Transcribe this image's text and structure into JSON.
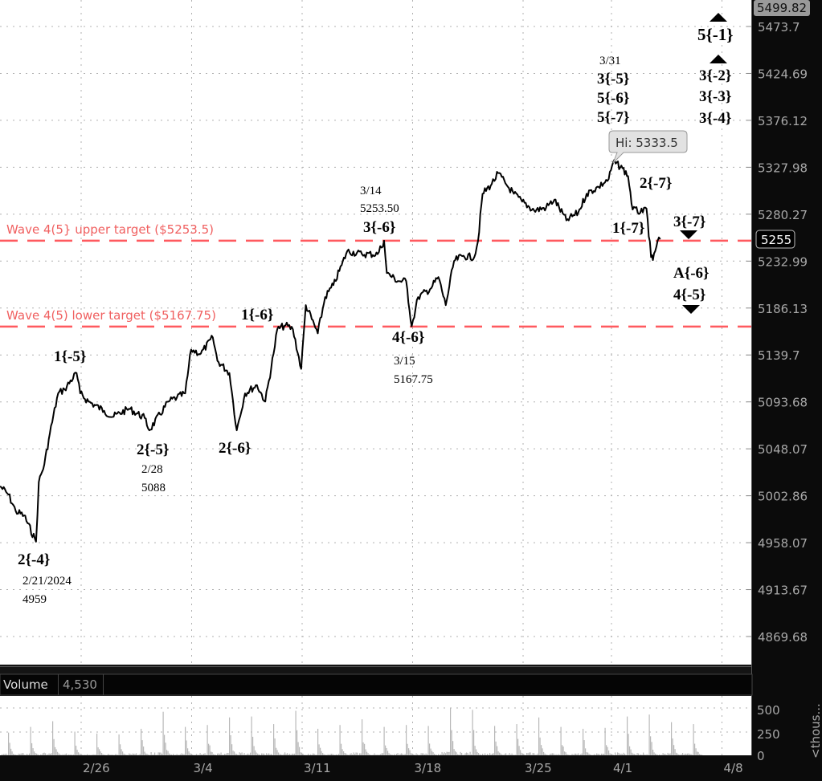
{
  "colors": {
    "price_line": "#000000",
    "target_line": "#ff5a5f",
    "target_text": "#f06060",
    "volume_bar": "#b8b8b8",
    "axis_bg": "#0b0b0b",
    "axis_text": "#a8a8a8"
  },
  "price_axis": {
    "top_box": "5499.82",
    "ticks": [
      "5473.7",
      "5424.69",
      "5376.12",
      "5327.98",
      "5280.27",
      "5232.99",
      "5186.13",
      "5139.7",
      "5093.68",
      "5048.07",
      "5002.86",
      "4958.07",
      "4913.67",
      "4869.68"
    ],
    "last_price": "5255"
  },
  "date_axis": {
    "ticks": [
      "2/26",
      "3/4",
      "3/11",
      "3/18",
      "3/25",
      "4/1",
      "4/8"
    ]
  },
  "volume": {
    "label": "Volume",
    "value": "4,530",
    "ticks": [
      "500",
      "250",
      "0"
    ],
    "unit": "<thous..."
  },
  "targets": [
    {
      "label": "Wave 4(5} upper target ($5253.5)",
      "price": 5253.5
    },
    {
      "label": "Wave 4(5) lower target ($5167.75)",
      "price": 5167.75
    }
  ],
  "callout": {
    "text": "Hi: 5333.5"
  },
  "annotations": {
    "a1": "2{-4}",
    "a1d": "2/21/2024",
    "a1p": "4959",
    "a2": "1{-5}",
    "a3": "2{-5}",
    "a3d": "2/28",
    "a3p": "5088",
    "a4": "2{-6}",
    "a5": "1{-6}",
    "a6d": "3/14",
    "a6p": "5253.50",
    "a6": "3{-6}",
    "a7": "4{-6}",
    "a7d": "3/15",
    "a7p": "5167.75",
    "a8d": "3/31",
    "a8a": "3{-5}",
    "a8b": "5{-6}",
    "a8c": "5{-7}",
    "a9": "2{-7}",
    "a10": "1{-7}",
    "a11": "3{-7}",
    "a12": "A{-6}",
    "a13": "4{-5}",
    "a14": "5{-1}",
    "a15": "3{-2}",
    "a16": "3{-3}",
    "a17": "3{-4}"
  },
  "chart_data": {
    "type": "line",
    "y_scale": "log",
    "ylim": [
      4845,
      5505
    ],
    "grid": true,
    "series": [
      {
        "points": [
          [
            "2/20 08:00",
            5012
          ],
          [
            "2/20 17:00",
            5004
          ],
          [
            "2/21 01:00",
            4988
          ],
          [
            "2/21 10:00",
            4984
          ],
          [
            "2/21 23:00",
            4959
          ],
          [
            "2/22 02:00",
            5016
          ],
          [
            "2/22 08:00",
            5033
          ],
          [
            "2/22 14:00",
            5063
          ],
          [
            "2/22 23:00",
            5102
          ],
          [
            "2/23 06:00",
            5106
          ],
          [
            "2/23 19:00",
            5122
          ],
          [
            "2/23 23:00",
            5102
          ],
          [
            "2/26 08:00",
            5094
          ],
          [
            "2/27 01:00",
            5085
          ],
          [
            "2/27 10:00",
            5079
          ],
          [
            "2/28 04:00",
            5087
          ],
          [
            "2/28 21:00",
            5078
          ],
          [
            "2/29 02:00",
            5066
          ],
          [
            "2/29 23:00",
            5094
          ],
          [
            "3/1 08:00",
            5098
          ],
          [
            "3/1 17:00",
            5102
          ],
          [
            "3/1 23:30",
            5145
          ],
          [
            "3/4 10:00",
            5141
          ],
          [
            "3/4 23:00",
            5157
          ],
          [
            "3/5 04:00",
            5134
          ],
          [
            "3/5 17:00",
            5122
          ],
          [
            "3/5 21:00",
            5094
          ],
          [
            "3/6 01:00",
            5066
          ],
          [
            "3/6 10:00",
            5102
          ],
          [
            "3/6 23:00",
            5110
          ],
          [
            "3/7 08:00",
            5094
          ],
          [
            "3/7 17:00",
            5141
          ],
          [
            "3/7 21:00",
            5165
          ],
          [
            "3/8 06:00",
            5169
          ],
          [
            "3/8 14:00",
            5165
          ],
          [
            "3/8 23:00",
            5126
          ],
          [
            "3/11 04:00",
            5189
          ],
          [
            "3/11 17:00",
            5161
          ],
          [
            "3/12 01:00",
            5197
          ],
          [
            "3/12 10:00",
            5209
          ],
          [
            "3/12 19:00",
            5229
          ],
          [
            "3/13 01:00",
            5243
          ],
          [
            "3/13 17:00",
            5240
          ],
          [
            "3/14 10:00",
            5240
          ],
          [
            "3/14 17:00",
            5253.5
          ],
          [
            "3/14 20:00",
            5221
          ],
          [
            "3/15 08:00",
            5213
          ],
          [
            "3/15 17:00",
            5213
          ],
          [
            "3/15 23:00",
            5168
          ],
          [
            "3/18 06:00",
            5197
          ],
          [
            "3/18 19:00",
            5205
          ],
          [
            "3/19 04:00",
            5217
          ],
          [
            "3/19 12:00",
            5189
          ],
          [
            "3/19 21:00",
            5233
          ],
          [
            "3/20 06:00",
            5238
          ],
          [
            "3/20 19:00",
            5237
          ],
          [
            "3/20 23:00",
            5253
          ],
          [
            "3/21 04:00",
            5301
          ],
          [
            "3/21 14:00",
            5311
          ],
          [
            "3/21 21:00",
            5322
          ],
          [
            "3/22 06:00",
            5310
          ],
          [
            "3/22 14:00",
            5301
          ],
          [
            "3/22 23:00",
            5293
          ],
          [
            "3/25 12:00",
            5284
          ],
          [
            "3/26 01:00",
            5287
          ],
          [
            "3/26 10:00",
            5295
          ],
          [
            "3/26 23:00",
            5274
          ],
          [
            "3/27 12:00",
            5282
          ],
          [
            "3/27 21:00",
            5301
          ],
          [
            "3/28 10:00",
            5308
          ],
          [
            "3/28 21:00",
            5316
          ],
          [
            "4/1 02:00",
            5333.5
          ],
          [
            "4/1 12:00",
            5327
          ],
          [
            "4/1 18:00",
            5319
          ],
          [
            "4/1 23:00",
            5285
          ],
          [
            "4/2 10:00",
            5282
          ],
          [
            "4/2 14:00",
            5286
          ],
          [
            "4/2 19:00",
            5237
          ],
          [
            "4/2 21:00",
            5234
          ],
          [
            "4/3 02:00",
            5253
          ],
          [
            "4/3 05:00",
            5255
          ]
        ]
      }
    ],
    "volume_daily_peak_thousands": [
      240,
      300,
      360,
      250,
      230,
      220,
      280,
      460,
      300,
      320,
      400,
      410,
      330,
      470,
      280,
      320,
      380,
      300,
      320,
      310,
      500,
      480,
      310,
      330,
      400,
      300,
      280,
      290,
      410,
      430,
      350,
      330
    ]
  }
}
